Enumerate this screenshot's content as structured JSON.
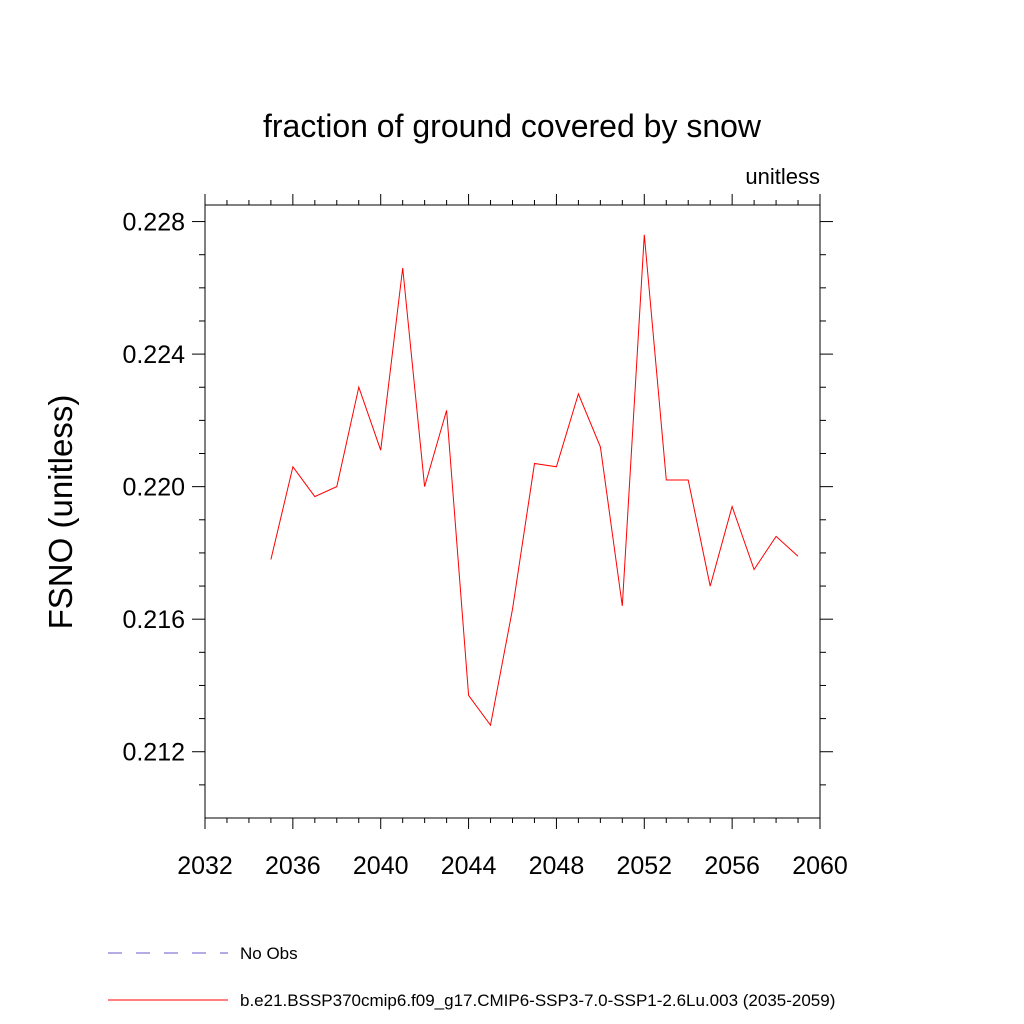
{
  "chart_data": {
    "type": "line",
    "title": "fraction of ground covered by snow",
    "units_label": "unitless",
    "xlabel": "",
    "ylabel": "FSNO  (unitless)",
    "xlim": [
      2032,
      2060
    ],
    "ylim": [
      0.21,
      0.2285
    ],
    "x_ticks": [
      2032,
      2036,
      2040,
      2044,
      2048,
      2052,
      2056,
      2060
    ],
    "x_tick_labels": [
      "2032",
      "2036",
      "2040",
      "2044",
      "2048",
      "2052",
      "2056",
      "2060"
    ],
    "y_ticks": [
      0.212,
      0.216,
      0.22,
      0.224,
      0.228
    ],
    "y_tick_labels": [
      "0.212",
      "0.216",
      "0.220",
      "0.224",
      "0.228"
    ],
    "grid": false,
    "legend_position": "bottom",
    "series": [
      {
        "name": "b.e21.BSSP370cmip6.f09_g17.CMIP6-SSP3-7.0-SSP1-2.6Lu.003 (2035-2059)",
        "color": "#ff0000",
        "style": "solid",
        "x": [
          2035,
          2036,
          2037,
          2038,
          2039,
          2040,
          2041,
          2042,
          2043,
          2044,
          2045,
          2046,
          2047,
          2048,
          2049,
          2050,
          2051,
          2052,
          2053,
          2054,
          2055,
          2056,
          2057,
          2058,
          2059
        ],
        "y": [
          0.2178,
          0.2206,
          0.2197,
          0.22,
          0.223,
          0.2211,
          0.2266,
          0.22,
          0.2223,
          0.2137,
          0.2128,
          0.2163,
          0.2207,
          0.2206,
          0.2228,
          0.2212,
          0.2164,
          0.2276,
          0.2202,
          0.2202,
          0.217,
          0.2194,
          0.2175,
          0.2185,
          0.2179
        ]
      }
    ],
    "legend": [
      {
        "label": "No Obs",
        "color": "#6a5acd",
        "style": "dashed"
      },
      {
        "label": "b.e21.BSSP370cmip6.f09_g17.CMIP6-SSP3-7.0-SSP1-2.6Lu.003 (2035-2059)",
        "color": "#ff0000",
        "style": "solid"
      }
    ]
  }
}
